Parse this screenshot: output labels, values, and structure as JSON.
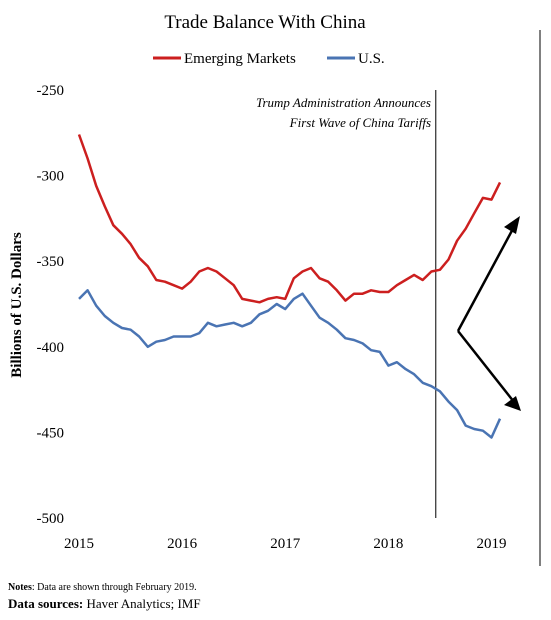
{
  "chart_data": {
    "type": "line",
    "title": "Trade Balance With China",
    "ylabel": "Billions of U.S. Dollars",
    "xlabel": "",
    "ylim": [
      -500,
      -250
    ],
    "xlim": [
      2015.0,
      2019.17
    ],
    "yticks": [
      -250,
      -300,
      -350,
      -400,
      -450,
      -500
    ],
    "xticks": [
      "2015",
      "2016",
      "2017",
      "2018",
      "2019"
    ],
    "xtick_values": [
      2015,
      2016,
      2017,
      2018,
      2019
    ],
    "grid": false,
    "legend_position": "top-center",
    "annotation": {
      "lines": [
        "Trump Administration Announces",
        "First Wave of China Tariffs"
      ],
      "x": 2018.46
    },
    "series": [
      {
        "name": "Emerging Markets",
        "color": "#cc1f1f",
        "x": [
          2015.0,
          2015.083,
          2015.167,
          2015.25,
          2015.333,
          2015.417,
          2015.5,
          2015.583,
          2015.667,
          2015.75,
          2015.833,
          2015.917,
          2016.0,
          2016.083,
          2016.167,
          2016.25,
          2016.333,
          2016.417,
          2016.5,
          2016.583,
          2016.667,
          2016.75,
          2016.833,
          2016.917,
          2017.0,
          2017.083,
          2017.167,
          2017.25,
          2017.333,
          2017.417,
          2017.5,
          2017.583,
          2017.667,
          2017.75,
          2017.833,
          2017.917,
          2018.0,
          2018.083,
          2018.167,
          2018.25,
          2018.333,
          2018.417,
          2018.5,
          2018.583,
          2018.667,
          2018.75,
          2018.833,
          2018.917,
          2019.0,
          2019.083
        ],
        "values": [
          -276,
          -290,
          -306,
          -318,
          -329,
          -334,
          -340,
          -348,
          -353,
          -361,
          -362,
          -364,
          -366,
          -362,
          -356,
          -354,
          -356,
          -360,
          -364,
          -372,
          -373,
          -374,
          -372,
          -371,
          -372,
          -360,
          -356,
          -354,
          -360,
          -362,
          -367,
          -373,
          -369,
          -369,
          -367,
          -368,
          -368,
          -364,
          -361,
          -358,
          -361,
          -356,
          -355,
          -349,
          -338,
          -331,
          -322,
          -313,
          -314,
          -304
        ]
      },
      {
        "name": "U.S.",
        "color": "#4a74b3",
        "x": [
          2015.0,
          2015.083,
          2015.167,
          2015.25,
          2015.333,
          2015.417,
          2015.5,
          2015.583,
          2015.667,
          2015.75,
          2015.833,
          2015.917,
          2016.0,
          2016.083,
          2016.167,
          2016.25,
          2016.333,
          2016.417,
          2016.5,
          2016.583,
          2016.667,
          2016.75,
          2016.833,
          2016.917,
          2017.0,
          2017.083,
          2017.167,
          2017.25,
          2017.333,
          2017.417,
          2017.5,
          2017.583,
          2017.667,
          2017.75,
          2017.833,
          2017.917,
          2018.0,
          2018.083,
          2018.167,
          2018.25,
          2018.333,
          2018.417,
          2018.5,
          2018.583,
          2018.667,
          2018.75,
          2018.833,
          2018.917,
          2019.0,
          2019.083
        ],
        "values": [
          -372,
          -367,
          -376,
          -382,
          -386,
          -389,
          -390,
          -394,
          -400,
          -397,
          -396,
          -394,
          -394,
          -394,
          -392,
          -386,
          -388,
          -387,
          -386,
          -388,
          -386,
          -381,
          -379,
          -375,
          -378,
          -372,
          -369,
          -376,
          -383,
          -386,
          -390,
          -395,
          -396,
          -398,
          -402,
          -403,
          -411,
          -409,
          -413,
          -416,
          -421,
          -423,
          -426,
          -432,
          -437,
          -446,
          -448,
          -449,
          -453,
          -442
        ]
      }
    ]
  },
  "footer": {
    "notes_label": "Notes",
    "notes_text": ": Data are shown through February 2019.",
    "sources_label": "Data sources:",
    "sources_text": " Haver Analytics; IMF"
  }
}
